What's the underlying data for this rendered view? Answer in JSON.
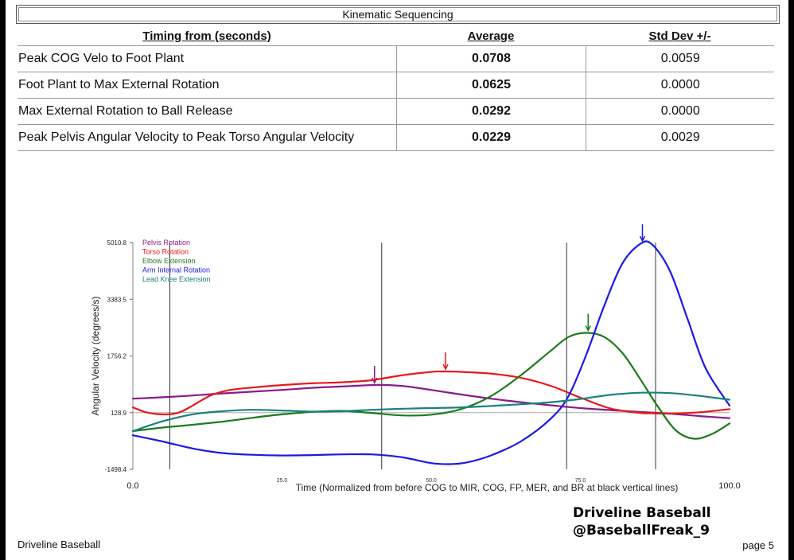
{
  "section_title": "Kinematic Sequencing",
  "table": {
    "headers": {
      "label": "Timing from (seconds)",
      "average": "Average",
      "std": "Std Dev +/-"
    },
    "rows": [
      {
        "label": "Peak COG Velo to Foot Plant",
        "average": "0.0708",
        "std": "0.0059"
      },
      {
        "label": "Foot Plant to Max External Rotation",
        "average": "0.0625",
        "std": "0.0000"
      },
      {
        "label": "Max External Rotation to Ball Release",
        "average": "0.0292",
        "std": "0.0000"
      },
      {
        "label": "Peak Pelvis Angular Velocity to Peak Torso Angular Velocity",
        "average": "0.0229",
        "std": "0.0029"
      }
    ]
  },
  "chart_data": {
    "type": "line",
    "xlabel": "Time (Normalized from before COG to MIR, COG, FP, MER, and BR at black vertical lines)",
    "ylabel": "Angular Velocity (degrees/s)",
    "xlim": [
      0,
      100
    ],
    "ylim": [
      -1498.4,
      5010.8
    ],
    "y_ticks": [
      "5010.8",
      "3383.5",
      "1756.2",
      "128.9",
      "-1498.4"
    ],
    "x_ticks_minor": [
      "25.0",
      "50.0",
      "75.0"
    ],
    "x_ticks_major": [
      "0.0",
      "100.0"
    ],
    "vertical_lines": [
      6.2,
      41.7,
      72.7,
      87.6
    ],
    "baseline": 128.9,
    "legend_position": "top-left",
    "series": [
      {
        "name": "Pelvis Rotation",
        "color": "#8b1a8b",
        "x": [
          0,
          5,
          10,
          15,
          20,
          25,
          30,
          35,
          40,
          43,
          46,
          50,
          55,
          60,
          65,
          70,
          75,
          80,
          85,
          90,
          95,
          100
        ],
        "y": [
          530,
          570,
          620,
          680,
          730,
          780,
          840,
          880,
          920,
          920,
          880,
          780,
          650,
          530,
          430,
          340,
          260,
          200,
          150,
          100,
          30,
          -30
        ],
        "peak": {
          "x": 40.5,
          "y": 920
        }
      },
      {
        "name": "Torso Rotation",
        "color": "#e8191a",
        "x": [
          0,
          2,
          4,
          6,
          8,
          10,
          13,
          16,
          20,
          25,
          30,
          35,
          40,
          45,
          50,
          52,
          55,
          60,
          65,
          70,
          75,
          80,
          85,
          87,
          90,
          95,
          100
        ],
        "y": [
          280,
          150,
          90,
          80,
          150,
          330,
          620,
          770,
          850,
          920,
          970,
          1000,
          1060,
          1200,
          1300,
          1310,
          1300,
          1250,
          1130,
          900,
          560,
          250,
          120,
          110,
          100,
          140,
          230
        ],
        "peak": {
          "x": 52.4,
          "y": 1310
        }
      },
      {
        "name": "Elbow Extension",
        "color": "#1a7c1a",
        "x": [
          0,
          5,
          10,
          15,
          20,
          25,
          30,
          35,
          40,
          45,
          50,
          55,
          60,
          65,
          70,
          73,
          76,
          79,
          82,
          85,
          88,
          91,
          94,
          97,
          100
        ],
        "y": [
          -400,
          -300,
          -220,
          -130,
          -20,
          80,
          150,
          180,
          120,
          50,
          70,
          230,
          600,
          1200,
          1900,
          2300,
          2420,
          2300,
          1850,
          1100,
          300,
          -380,
          -620,
          -490,
          -180
        ],
        "peak": {
          "x": 76.3,
          "y": 2420
        }
      },
      {
        "name": "Arm Internal Rotation",
        "color": "#1a1ae6",
        "x": [
          0,
          5,
          10,
          15,
          20,
          25,
          30,
          35,
          40,
          45,
          50,
          53,
          56,
          60,
          65,
          70,
          73,
          76,
          79,
          82,
          85,
          87,
          90,
          93,
          96,
          100
        ],
        "y": [
          -520,
          -700,
          -900,
          -1030,
          -1080,
          -1100,
          -1090,
          -1070,
          -1070,
          -1150,
          -1320,
          -1350,
          -1300,
          -1100,
          -700,
          -50,
          600,
          1800,
          3200,
          4400,
          4970,
          4960,
          4200,
          2800,
          1400,
          330
        ],
        "peak": {
          "x": 85.4,
          "y": 4990
        }
      },
      {
        "name": "Lead Knee Extension",
        "color": "#1a8080",
        "x": [
          0,
          5,
          10,
          15,
          20,
          25,
          30,
          35,
          40,
          45,
          50,
          55,
          60,
          65,
          70,
          75,
          80,
          85,
          90,
          95,
          100
        ],
        "y": [
          -400,
          -120,
          80,
          170,
          210,
          190,
          160,
          170,
          210,
          240,
          260,
          280,
          320,
          370,
          430,
          520,
          640,
          700,
          690,
          610,
          500
        ]
      }
    ]
  },
  "footer_left": "Driveline Baseball",
  "footer_right": "page 5",
  "watermark": {
    "line1": "Driveline Baseball",
    "line2": "@BaseballFreak_9"
  }
}
